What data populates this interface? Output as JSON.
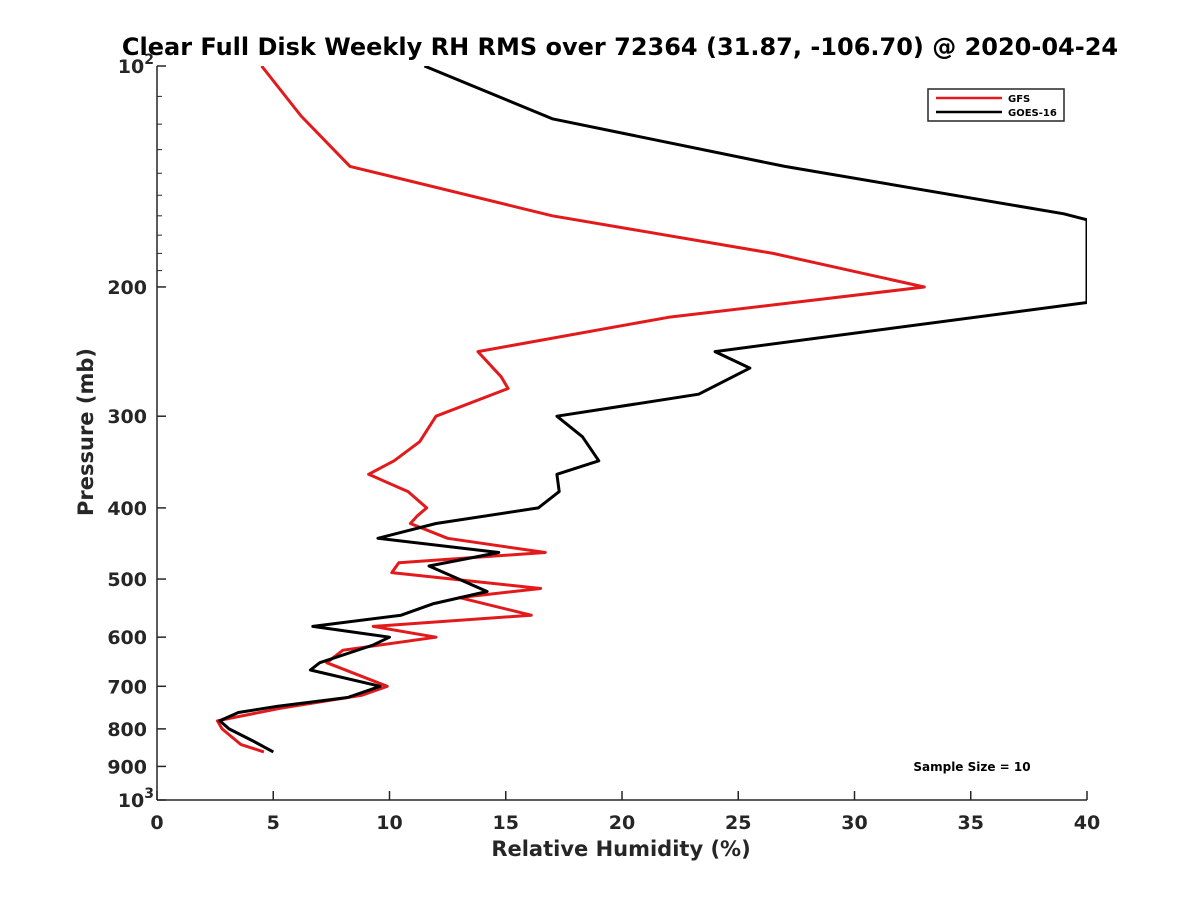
{
  "chart_data": {
    "type": "line",
    "title": "Clear Full Disk Weekly RH RMS over 72364 (31.87, -106.70) @ 2020-04-24",
    "xlabel": "Relative Humidity (%)",
    "ylabel": "Pressure (mb)",
    "xlim": [
      0,
      40
    ],
    "ylim": [
      100,
      1000
    ],
    "yscale": "log",
    "y_reversed": true,
    "x_ticks": [
      0,
      5,
      10,
      15,
      20,
      25,
      30,
      35,
      40
    ],
    "y_ticks": [
      {
        "value": 100,
        "label": "10",
        "sup": "2"
      },
      {
        "value": 200,
        "label": "200"
      },
      {
        "value": 300,
        "label": "300"
      },
      {
        "value": 400,
        "label": "400"
      },
      {
        "value": 500,
        "label": "500"
      },
      {
        "value": 600,
        "label": "600"
      },
      {
        "value": 700,
        "label": "700"
      },
      {
        "value": 800,
        "label": "800"
      },
      {
        "value": 900,
        "label": "900"
      },
      {
        "value": 1000,
        "label": "10",
        "sup": "3"
      }
    ],
    "legend_position": "top-right",
    "grid": false,
    "annotation": "Sample Size = 10",
    "series": [
      {
        "name": "GFS",
        "color": "#e31a1c",
        "points": [
          [
            4.5,
            100
          ],
          [
            6.2,
            117
          ],
          [
            8.3,
            137
          ],
          [
            17.0,
            160
          ],
          [
            26.5,
            180
          ],
          [
            33.0,
            200
          ],
          [
            22.0,
            220
          ],
          [
            13.8,
            245
          ],
          [
            14.8,
            265
          ],
          [
            15.1,
            275
          ],
          [
            12.0,
            300
          ],
          [
            11.3,
            325
          ],
          [
            10.2,
            345
          ],
          [
            9.1,
            360
          ],
          [
            10.8,
            380
          ],
          [
            11.6,
            400
          ],
          [
            11.2,
            410
          ],
          [
            10.9,
            420
          ],
          [
            12.5,
            440
          ],
          [
            16.7,
            460
          ],
          [
            10.4,
            475
          ],
          [
            10.1,
            490
          ],
          [
            16.5,
            515
          ],
          [
            13.0,
            530
          ],
          [
            16.1,
            560
          ],
          [
            9.3,
            580
          ],
          [
            12.0,
            600
          ],
          [
            8.0,
            625
          ],
          [
            7.3,
            650
          ],
          [
            9.9,
            700
          ],
          [
            8.8,
            720
          ],
          [
            5.3,
            750
          ],
          [
            2.6,
            780
          ],
          [
            2.8,
            800
          ],
          [
            3.6,
            840
          ],
          [
            4.6,
            860
          ]
        ]
      },
      {
        "name": "GOES-16",
        "color": "#000000",
        "points": [
          [
            11.5,
            100
          ],
          [
            17.0,
            118
          ],
          [
            27.0,
            137
          ],
          [
            39.0,
            159
          ],
          [
            40.0,
            162
          ],
          [
            40.0,
            210
          ],
          [
            24.0,
            245
          ],
          [
            25.5,
            258
          ],
          [
            23.3,
            280
          ],
          [
            17.2,
            300
          ],
          [
            18.3,
            320
          ],
          [
            19.0,
            345
          ],
          [
            17.2,
            360
          ],
          [
            17.3,
            380
          ],
          [
            16.4,
            400
          ],
          [
            12.0,
            420
          ],
          [
            9.5,
            440
          ],
          [
            14.7,
            460
          ],
          [
            11.7,
            480
          ],
          [
            14.2,
            520
          ],
          [
            11.9,
            540
          ],
          [
            10.5,
            560
          ],
          [
            6.7,
            580
          ],
          [
            10.0,
            600
          ],
          [
            9.3,
            615
          ],
          [
            7.0,
            650
          ],
          [
            6.6,
            665
          ],
          [
            9.6,
            700
          ],
          [
            8.2,
            725
          ],
          [
            5.2,
            745
          ],
          [
            3.5,
            760
          ],
          [
            2.7,
            780
          ],
          [
            3.1,
            800
          ],
          [
            4.1,
            830
          ],
          [
            5.0,
            860
          ]
        ]
      }
    ]
  }
}
